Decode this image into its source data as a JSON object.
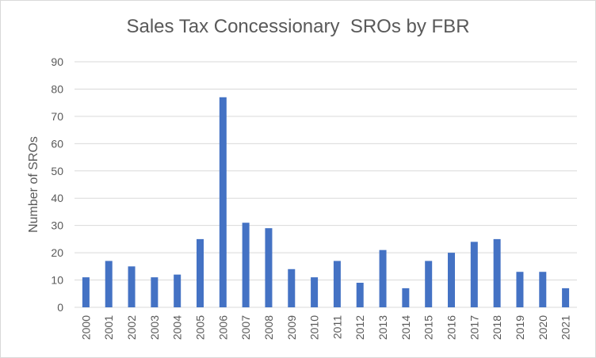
{
  "chart_data": {
    "type": "bar",
    "title": "Sales Tax Concessionary  SROs by FBR",
    "xlabel": "",
    "ylabel": "Number of SROs",
    "categories": [
      "2000",
      "2001",
      "2002",
      "2003",
      "2004",
      "2005",
      "2006",
      "2007",
      "2008",
      "2009",
      "2010",
      "2011",
      "2012",
      "2013",
      "2014",
      "2015",
      "2016",
      "2017",
      "2018",
      "2019",
      "2020",
      "2021"
    ],
    "values": [
      11,
      17,
      15,
      11,
      12,
      25,
      77,
      31,
      29,
      14,
      11,
      17,
      9,
      21,
      7,
      17,
      20,
      24,
      25,
      13,
      13,
      7
    ],
    "ylim": [
      0,
      90
    ],
    "yticks": [
      0,
      10,
      20,
      30,
      40,
      50,
      60,
      70,
      80,
      90
    ],
    "grid": true,
    "legend": "none",
    "bar_color": "#4472c4",
    "grid_color": "#d9d9d9"
  }
}
